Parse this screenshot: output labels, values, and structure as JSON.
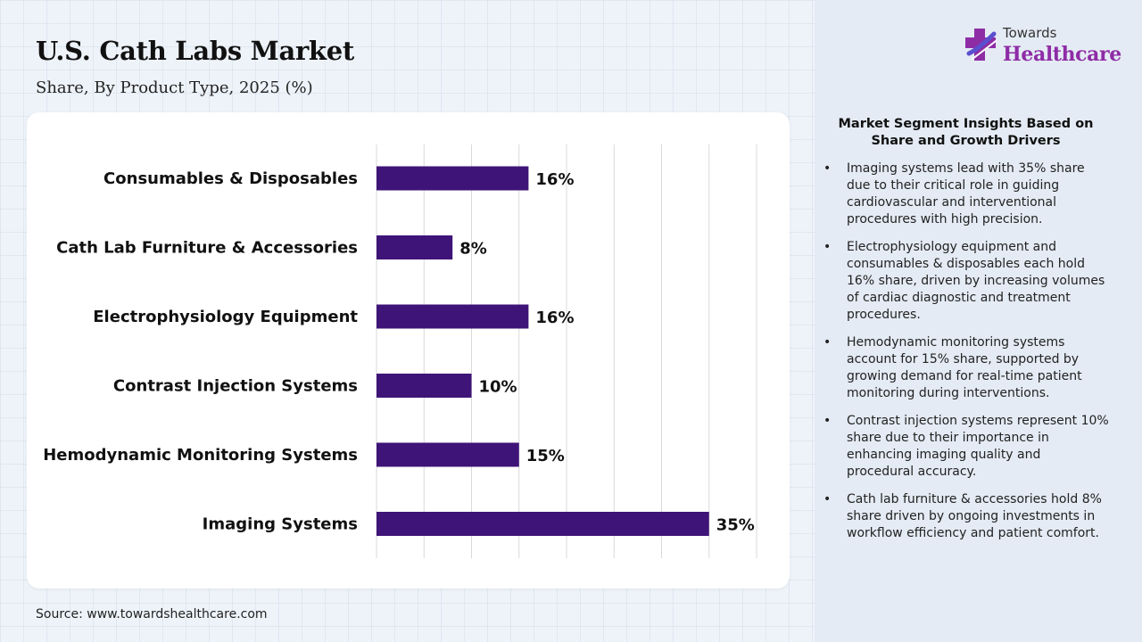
{
  "header": {
    "title": "U.S. Cath Labs Market",
    "subtitle": "Share, By Product Type, 2025 (%)"
  },
  "source": "Source: www.towardshealthcare.com",
  "logo": {
    "top_text": "Towards",
    "main_text": "Healthcare"
  },
  "insights": {
    "title": "Market Segment Insights Based on Share and Growth Drivers",
    "items": [
      "Imaging systems lead with 35% share due to their critical role in guiding cardiovascular and interventional procedures with high precision.",
      "Electrophysiology equipment and consumables & disposables each hold 16% share, driven by increasing volumes of cardiac diagnostic and treatment procedures.",
      "Hemodynamic monitoring systems account for 15% share, supported by growing demand for real-time patient monitoring during interventions.",
      "Contrast injection systems represent 10% share due to their importance in enhancing imaging quality and procedural accuracy.",
      "Cath lab furniture & accessories hold 8% share driven by ongoing investments in workflow efficiency and patient comfort."
    ]
  },
  "colors": {
    "bar": "#3f1478",
    "grid": "#d9d9d9",
    "logo_accent": "#8e2ca6",
    "logo_secondary": "#5a4fcf"
  },
  "chart_data": {
    "type": "bar",
    "orientation": "horizontal",
    "title": "",
    "xlabel": "",
    "ylabel": "",
    "categories": [
      "Consumables & Disposables",
      "Cath Lab Furniture & Accessories",
      "Electrophysiology Equipment",
      "Contrast Injection Systems",
      "Hemodynamic Monitoring Systems",
      "Imaging Systems"
    ],
    "values": [
      16,
      8,
      16,
      10,
      15,
      35
    ],
    "data_labels": [
      "16%",
      "8%",
      "16%",
      "10%",
      "15%",
      "35%"
    ],
    "xlim": [
      0,
      40
    ],
    "grid": "vertical",
    "legend": "none"
  }
}
